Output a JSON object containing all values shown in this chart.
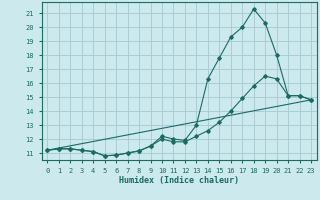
{
  "xlabel": "Humidex (Indice chaleur)",
  "bg_color": "#cce9ee",
  "grid_color": "#aacdd5",
  "line_color": "#1a6b62",
  "xlim": [
    -0.5,
    23.5
  ],
  "ylim": [
    10.5,
    21.8
  ],
  "yticks": [
    11,
    12,
    13,
    14,
    15,
    16,
    17,
    18,
    19,
    20,
    21
  ],
  "xticks": [
    0,
    1,
    2,
    3,
    4,
    5,
    6,
    7,
    8,
    9,
    10,
    11,
    12,
    13,
    14,
    15,
    16,
    17,
    18,
    19,
    20,
    21,
    22,
    23
  ],
  "line1_x": [
    0,
    1,
    2,
    3,
    4,
    5,
    6,
    7,
    8,
    9,
    10,
    11,
    12,
    13,
    14,
    15,
    16,
    17,
    18,
    19,
    20,
    21,
    22,
    23
  ],
  "line1_y": [
    11.2,
    11.3,
    11.3,
    11.2,
    11.1,
    10.8,
    10.85,
    11.0,
    11.15,
    11.5,
    12.2,
    12.0,
    11.9,
    13.0,
    16.3,
    17.8,
    19.3,
    20.0,
    21.3,
    20.3,
    18.0,
    15.1,
    15.1,
    14.8
  ],
  "line2_x": [
    0,
    1,
    2,
    3,
    4,
    5,
    6,
    7,
    8,
    9,
    10,
    11,
    12,
    13,
    14,
    15,
    16,
    17,
    18,
    19,
    20,
    21,
    22,
    23
  ],
  "line2_y": [
    11.2,
    11.3,
    11.3,
    11.2,
    11.1,
    10.8,
    10.85,
    11.0,
    11.15,
    11.5,
    12.0,
    11.8,
    11.8,
    12.2,
    12.6,
    13.2,
    14.0,
    14.9,
    15.8,
    16.5,
    16.3,
    15.1,
    15.1,
    14.8
  ],
  "line3_x": [
    0,
    23
  ],
  "line3_y": [
    11.2,
    14.8
  ]
}
